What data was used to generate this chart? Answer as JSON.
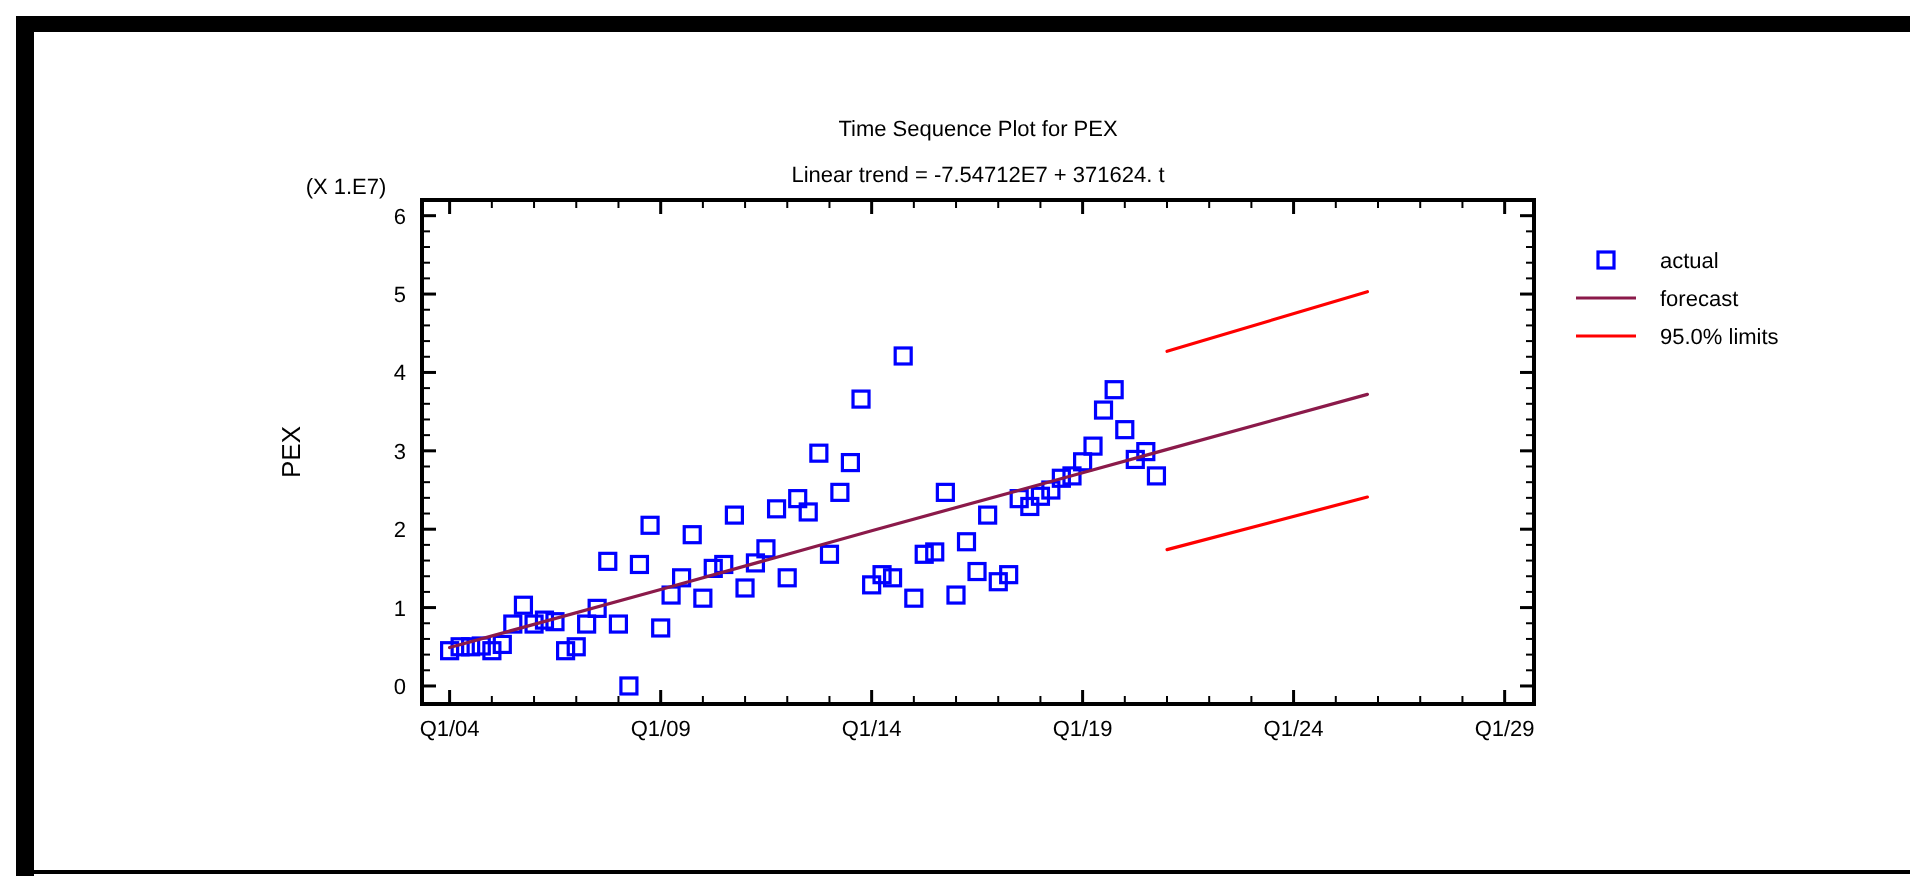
{
  "chart_data": {
    "type": "scatter",
    "title": "Time Sequence Plot for PEX",
    "subtitle": "Linear trend = -7.54712E7 + 371624. t",
    "ylabel": "PEX",
    "annotations": [
      "(X 1.E7)"
    ],
    "xlim": [
      "2003-05-07",
      "2029-09-12"
    ],
    "ylim": [
      -0.23,
      6.2
    ],
    "xticks": [
      {
        "value": "2004-01",
        "label": "Q1/04"
      },
      {
        "value": "2009-01",
        "label": "Q1/09"
      },
      {
        "value": "2014-01",
        "label": "Q1/14"
      },
      {
        "value": "2019-01",
        "label": "Q1/19"
      },
      {
        "value": "2024-01",
        "label": "Q1/24"
      },
      {
        "value": "2029-01",
        "label": "Q1/29"
      }
    ],
    "yticks": [
      0,
      1,
      2,
      3,
      4,
      5,
      6
    ],
    "grid": false,
    "legend": "right",
    "series": [
      {
        "name": "actual",
        "marker": "square",
        "color": "#0000ff",
        "x": [
          "2004-01",
          "2004-04",
          "2004-07",
          "2004-10",
          "2005-01",
          "2005-04",
          "2005-07",
          "2005-10",
          "2006-01",
          "2006-04",
          "2006-07",
          "2006-10",
          "2007-01",
          "2007-04",
          "2007-07",
          "2007-10",
          "2008-01",
          "2008-04",
          "2008-07",
          "2008-10",
          "2009-01",
          "2009-04",
          "2009-07",
          "2009-10",
          "2010-01",
          "2010-04",
          "2010-07",
          "2010-10",
          "2011-01",
          "2011-04",
          "2011-07",
          "2011-10",
          "2012-01",
          "2012-04",
          "2012-07",
          "2012-10",
          "2013-01",
          "2013-04",
          "2013-07",
          "2013-10",
          "2014-01",
          "2014-04",
          "2014-07",
          "2014-10",
          "2015-01",
          "2015-04",
          "2015-07",
          "2015-10",
          "2016-01",
          "2016-04",
          "2016-07",
          "2016-10",
          "2017-01",
          "2017-04",
          "2017-07",
          "2017-10",
          "2018-01",
          "2018-04",
          "2018-07",
          "2018-10",
          "2019-01",
          "2019-04",
          "2019-07",
          "2019-10",
          "2020-01",
          "2020-04",
          "2020-07",
          "2020-10"
        ],
        "values": [
          0.45,
          0.5,
          0.5,
          0.51,
          0.45,
          0.53,
          0.79,
          1.03,
          0.79,
          0.84,
          0.82,
          0.45,
          0.5,
          0.79,
          0.99,
          1.59,
          0.79,
          0,
          1.55,
          2.05,
          0.74,
          1.16,
          1.38,
          1.93,
          1.12,
          1.5,
          1.55,
          2.18,
          1.25,
          1.57,
          1.75,
          2.26,
          1.38,
          2.39,
          2.22,
          2.97,
          1.68,
          2.47,
          2.85,
          3.66,
          1.29,
          1.42,
          1.38,
          4.21,
          1.12,
          1.68,
          1.71,
          2.47,
          1.16,
          1.84,
          1.46,
          2.18,
          1.33,
          1.42,
          2.39,
          2.29,
          2.42,
          2.5,
          2.65,
          2.68,
          2.86,
          3.06,
          3.52,
          3.78,
          3.27,
          2.89,
          2.99,
          2.68
        ]
      },
      {
        "name": "forecast",
        "type": "line",
        "line_style": "solid",
        "color": "#8b1a4a",
        "x": [
          "2004-01",
          "2009-01",
          "2014-01",
          "2019-01",
          "2020-10",
          "2025-10"
        ],
        "values": [
          0.49,
          1.23,
          1.98,
          2.72,
          2.98,
          3.72
        ]
      },
      {
        "name": "95.0% limits",
        "type": "line",
        "line_style": "solid",
        "color": "#ff0000",
        "x": [
          "2021-01",
          "2025-10"
        ],
        "values": [
          4.27,
          5.03
        ]
      },
      {
        "type": "line",
        "line_style": "solid",
        "color": "#ff0000",
        "x": [
          "2021-01",
          "2025-10"
        ],
        "values": [
          1.74,
          2.41
        ]
      }
    ]
  }
}
